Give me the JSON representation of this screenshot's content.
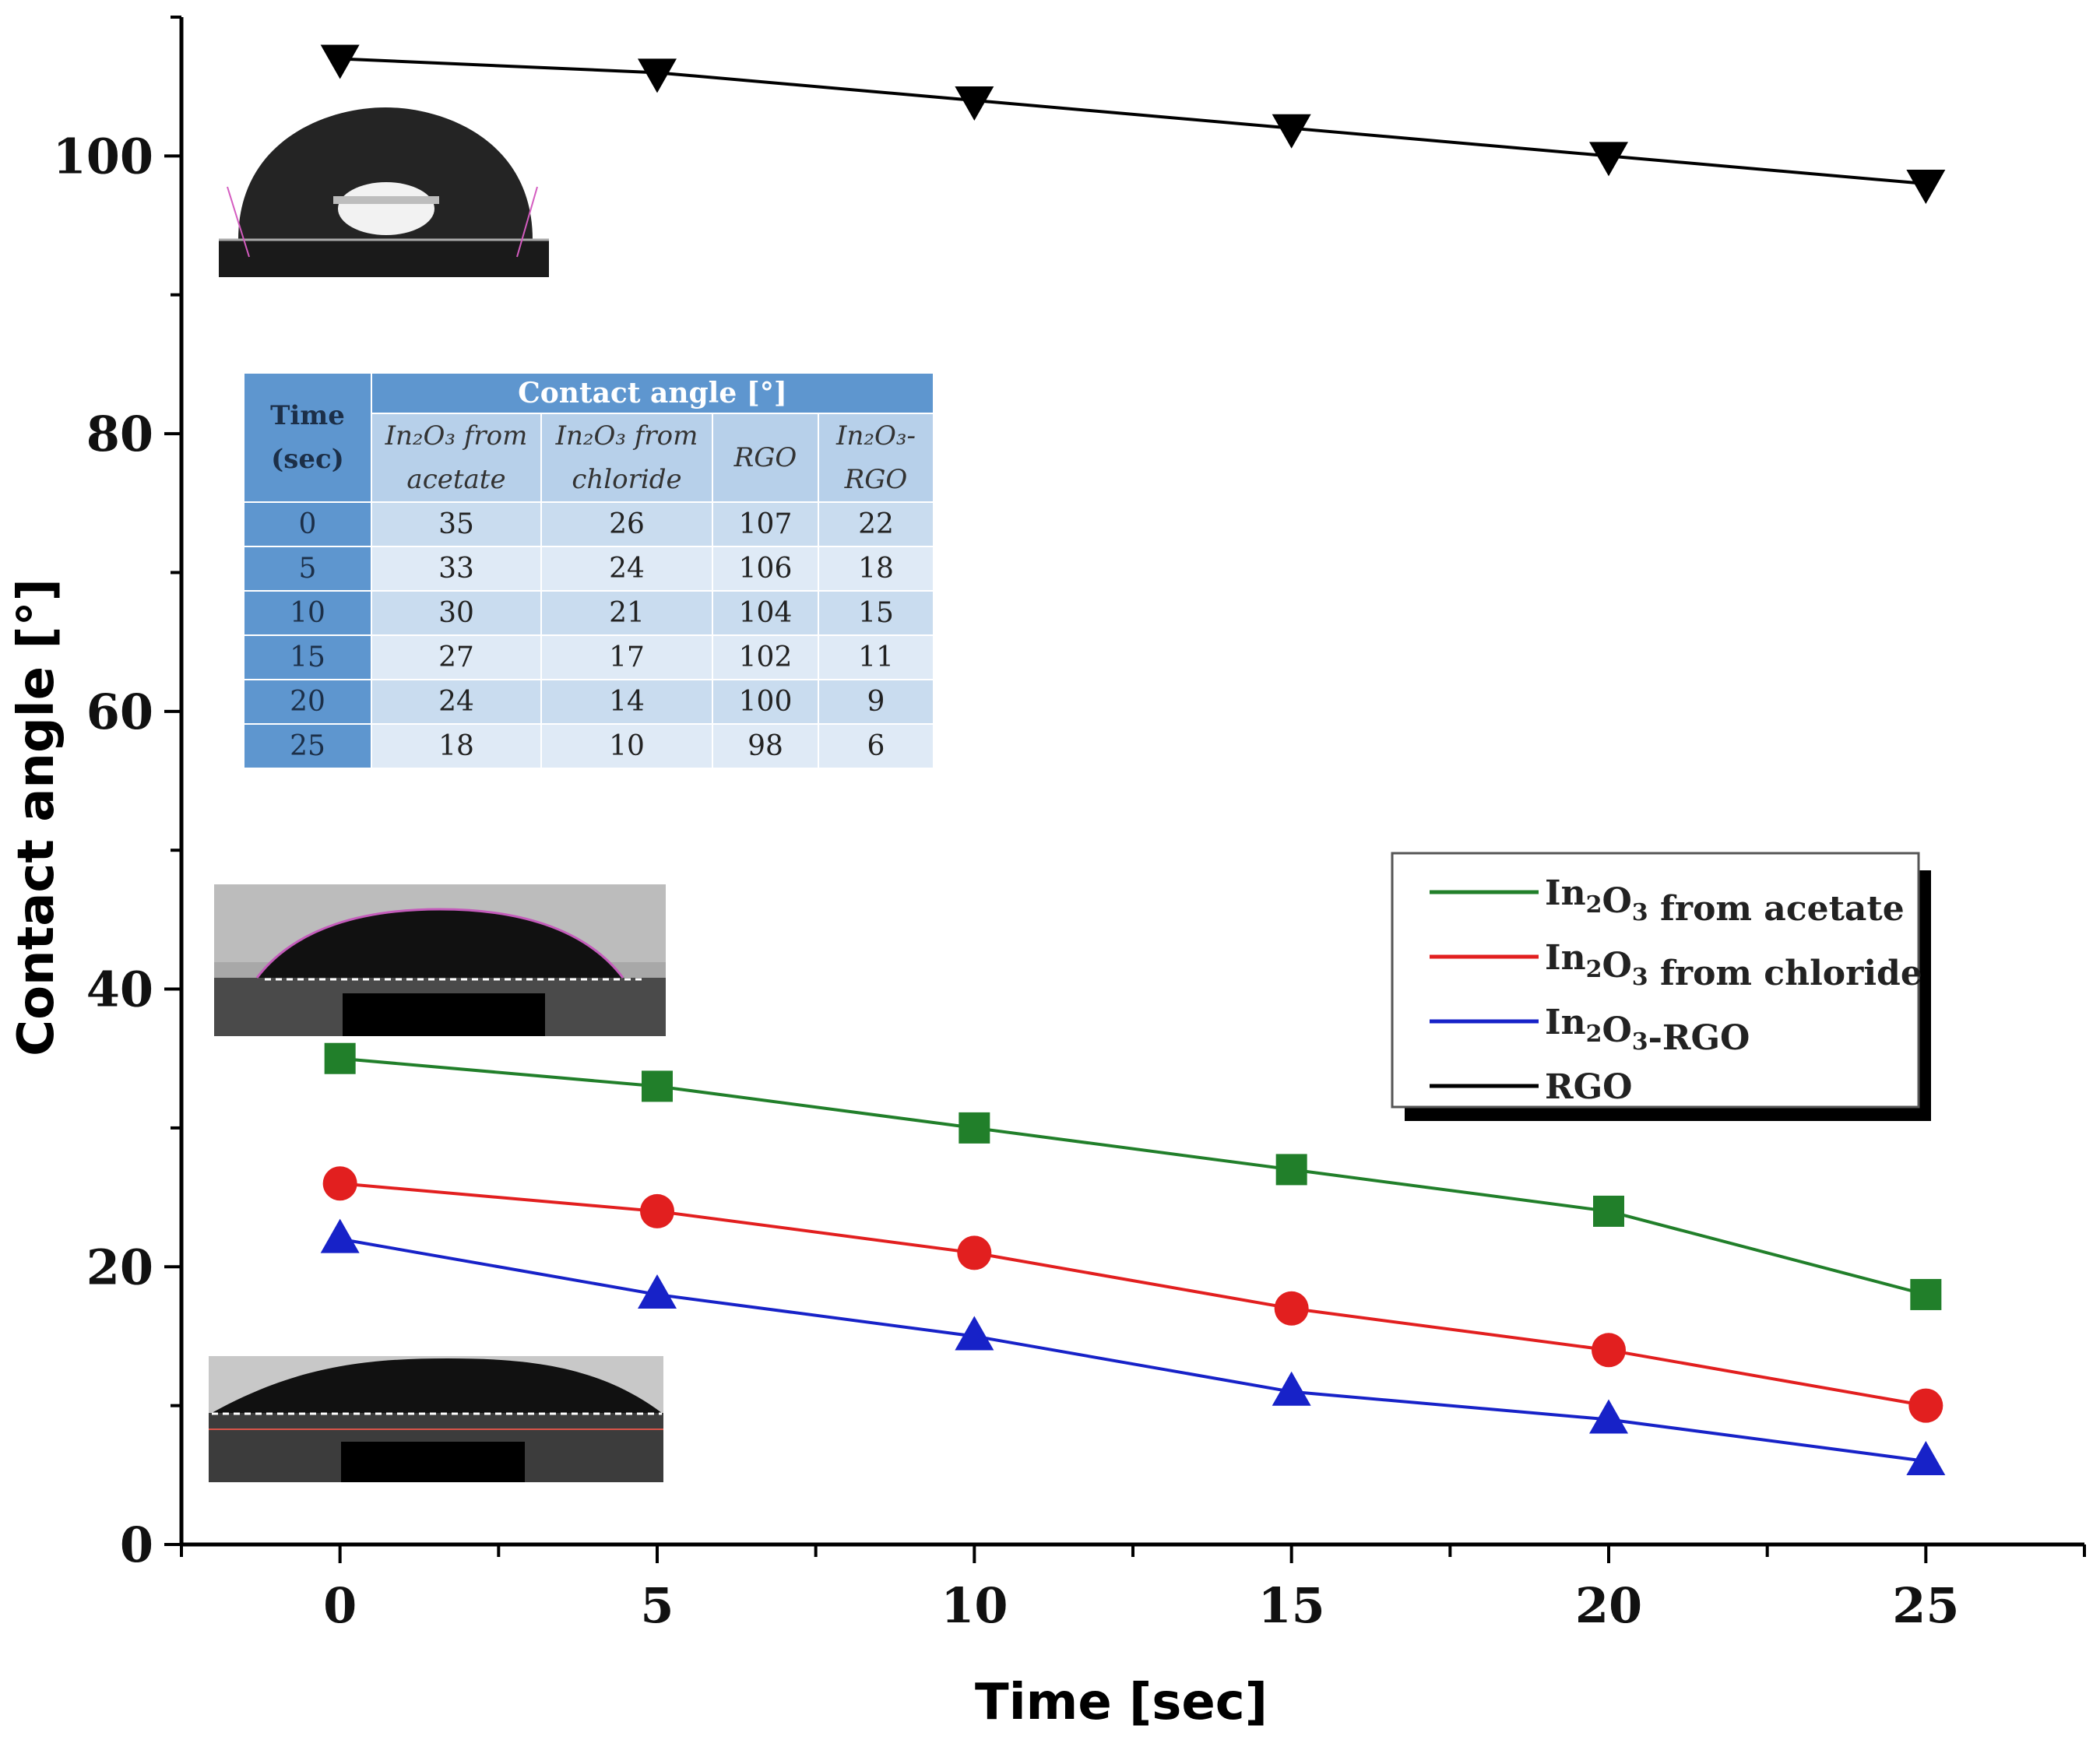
{
  "chart_data": {
    "type": "line",
    "xlabel": "Time [sec]",
    "ylabel": "Contact angle [°]",
    "x": [
      0,
      5,
      10,
      15,
      20,
      25
    ],
    "xlim": [
      -2.5,
      27.5
    ],
    "ylim": [
      0,
      110
    ],
    "xticks": [
      0,
      5,
      10,
      15,
      20,
      25
    ],
    "yticks": [
      0,
      20,
      40,
      60,
      80,
      100
    ],
    "grid": false,
    "legend_position": "center-right",
    "series": [
      {
        "name": "In2O3 from acetate",
        "legend_main": "In",
        "legend_sub1": "2",
        "legend_mid": "O",
        "legend_sub2": "3",
        "legend_rest": " from acetate",
        "color": "#217f2a",
        "marker": "square",
        "values": [
          35,
          33,
          30,
          27,
          24,
          18
        ]
      },
      {
        "name": "In2O3 from chloride",
        "legend_main": "In",
        "legend_sub1": "2",
        "legend_mid": "O",
        "legend_sub2": "3",
        "legend_rest": " from chloride",
        "color": "#e21f1f",
        "marker": "circle",
        "values": [
          26,
          24,
          21,
          17,
          14,
          10
        ]
      },
      {
        "name": "In2O3-RGO",
        "legend_main": "In",
        "legend_sub1": "2",
        "legend_mid": "O",
        "legend_sub2": "3",
        "legend_rest": "-RGO",
        "color": "#1722c8",
        "marker": "triangle-up",
        "values": [
          22,
          18,
          15,
          11,
          9,
          6
        ]
      },
      {
        "name": "RGO",
        "legend_main": "RGO",
        "legend_sub1": "",
        "legend_mid": "",
        "legend_sub2": "",
        "legend_rest": "",
        "color": "#000000",
        "marker": "triangle-down",
        "values": [
          107,
          106,
          104,
          102,
          100,
          98
        ]
      }
    ],
    "inset_table": {
      "time_header": "Time (sec)",
      "group_header": "Contact angle [°]",
      "columns": [
        "In₂O₃ from acetate",
        "In₂O₃ from chloride",
        "RGO",
        "In₂O₃-RGO"
      ],
      "rows": [
        [
          "0",
          "35",
          "26",
          "107",
          "22"
        ],
        [
          "5",
          "33",
          "24",
          "106",
          "18"
        ],
        [
          "10",
          "30",
          "21",
          "104",
          "15"
        ],
        [
          "15",
          "27",
          "17",
          "102",
          "11"
        ],
        [
          "20",
          "24",
          "14",
          "100",
          "9"
        ],
        [
          "25",
          "18",
          "10",
          "98",
          "6"
        ]
      ]
    }
  }
}
